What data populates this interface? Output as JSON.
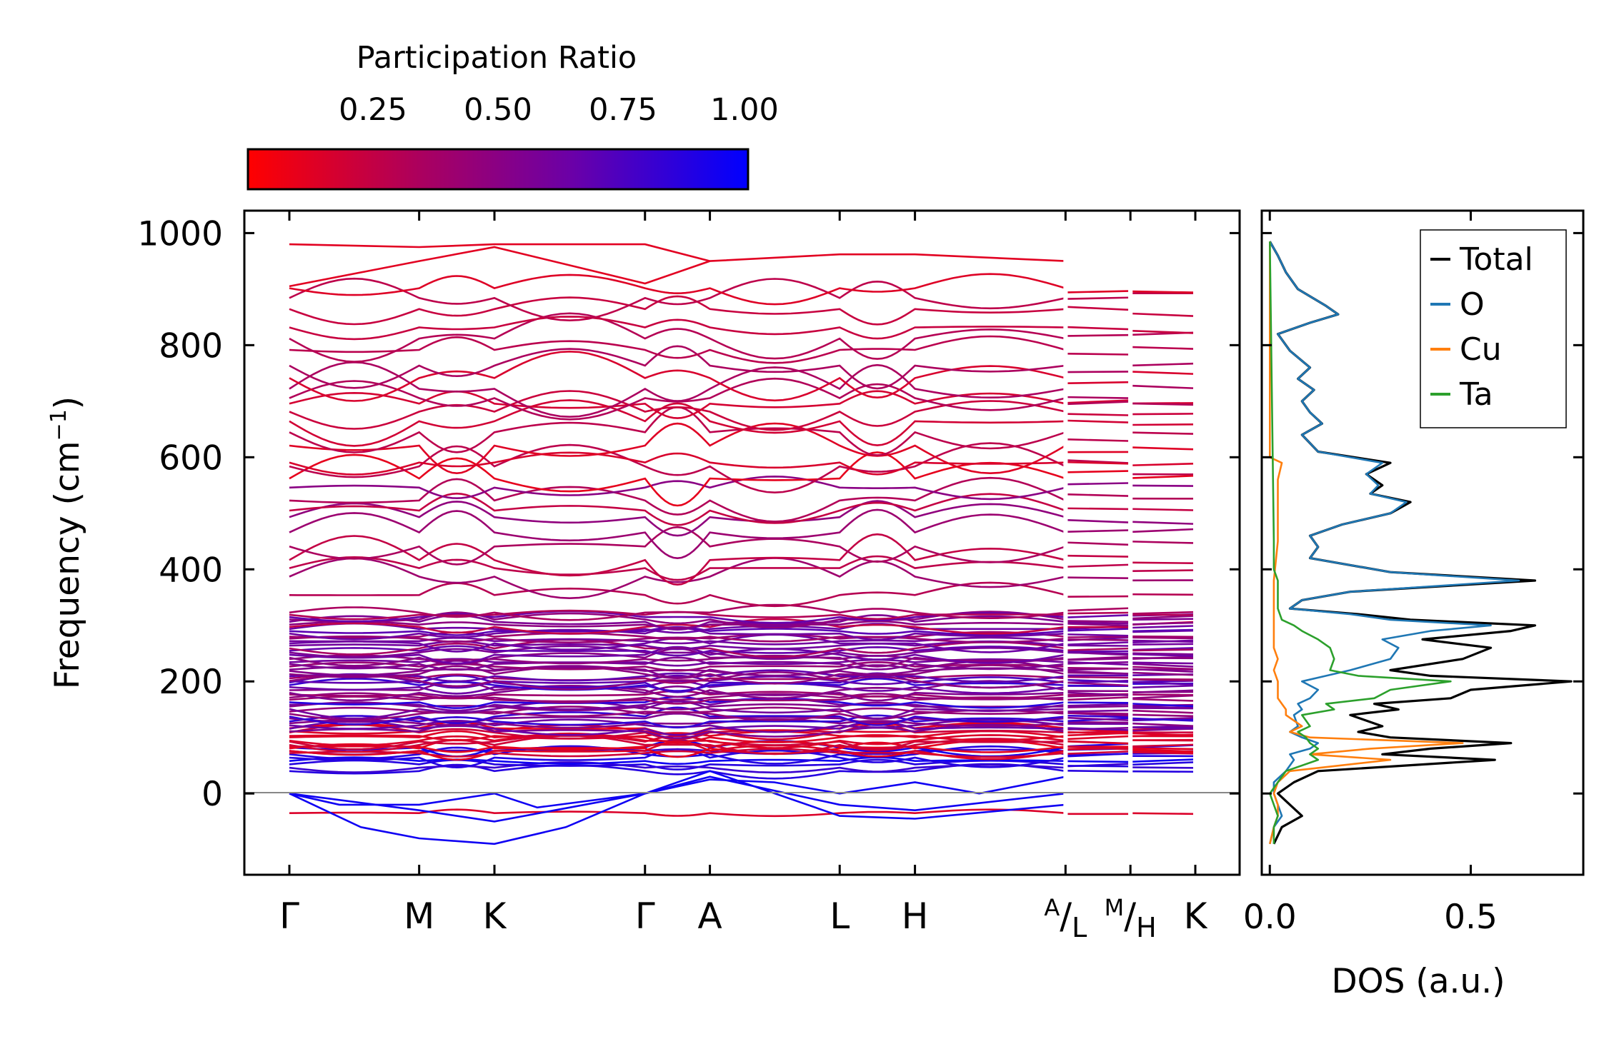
{
  "colorbar": {
    "title": "Participation Ratio",
    "ticks": [
      0.25,
      0.5,
      0.75,
      1.0
    ],
    "tick_labels": [
      "0.25",
      "0.50",
      "0.75",
      "1.00"
    ],
    "range": [
      0.0,
      1.0
    ],
    "color_low": "#ff0000",
    "color_high": "#0000ff"
  },
  "chart_data": [
    {
      "type": "line",
      "title": "",
      "xlabel": "",
      "ylabel_prefix": "Frequency (cm",
      "ylabel_sup": "−1",
      "ylabel_suffix": ")",
      "ylim": [
        -145,
        1040
      ],
      "yticks": [
        0,
        200,
        400,
        600,
        800,
        1000
      ],
      "ytick_labels": [
        "0",
        "200",
        "400",
        "600",
        "800",
        "1000"
      ],
      "kpath": {
        "segments": [
          {
            "from": "Γ",
            "to": "M",
            "length": 1.0
          },
          {
            "from": "M",
            "to": "K",
            "length": 0.58
          },
          {
            "from": "K",
            "to": "Γ",
            "length": 1.16
          },
          {
            "from": "Γ",
            "to": "A",
            "length": 0.5
          },
          {
            "from": "A",
            "to": "L",
            "length": 1.0
          },
          {
            "from": "L",
            "to": "H",
            "length": 0.58
          },
          {
            "from": "H",
            "to": "A",
            "length": 1.16
          },
          {
            "from": "L",
            "to": "M",
            "length": 0.5
          },
          {
            "from": "H",
            "to": "K",
            "length": 0.5
          }
        ],
        "tick_labels": [
          {
            "main": "Γ"
          },
          {
            "main": "M"
          },
          {
            "main": "K"
          },
          {
            "main": "Γ"
          },
          {
            "main": "A"
          },
          {
            "main": "L"
          },
          {
            "main": "H"
          },
          {
            "sup": "A",
            "main": "/",
            "sub": "L"
          },
          {
            "sup": "M",
            "main": "/",
            "sub": "H"
          },
          {
            "main": "K"
          }
        ]
      },
      "bands_description": "About 110 phonon branches spanning -90 to 980 cm-1, colored by participation ratio (red = localized ~0.1, blue = delocalized ~1.0). Imaginary (negative) modes near Γ, K, Γ and L-H regions; dense manifold 30-330 cm-1; separated groups around 340-600, 600-900 and a top branch near 950-980 cm-1."
    },
    {
      "type": "line",
      "orientation": "horizontal",
      "xlabel": "DOS (a.u.)",
      "xlim": [
        -0.02,
        0.78
      ],
      "xticks": [
        0.0,
        0.5
      ],
      "xtick_labels": [
        "0.0",
        "0.5"
      ],
      "ylim": [
        -145,
        1040
      ],
      "legend_position": "top-right",
      "series": [
        {
          "name": "Total",
          "color": "#000000",
          "points": [
            [
              -90,
              0.01
            ],
            [
              -60,
              0.03
            ],
            [
              -40,
              0.08
            ],
            [
              -20,
              0.05
            ],
            [
              0,
              0.02
            ],
            [
              20,
              0.06
            ],
            [
              40,
              0.12
            ],
            [
              60,
              0.56
            ],
            [
              70,
              0.28
            ],
            [
              80,
              0.4
            ],
            [
              90,
              0.6
            ],
            [
              100,
              0.3
            ],
            [
              110,
              0.22
            ],
            [
              120,
              0.28
            ],
            [
              140,
              0.2
            ],
            [
              150,
              0.32
            ],
            [
              160,
              0.26
            ],
            [
              170,
              0.45
            ],
            [
              185,
              0.5
            ],
            [
              200,
              0.75
            ],
            [
              210,
              0.4
            ],
            [
              220,
              0.3
            ],
            [
              240,
              0.48
            ],
            [
              260,
              0.55
            ],
            [
              275,
              0.38
            ],
            [
              290,
              0.6
            ],
            [
              300,
              0.66
            ],
            [
              310,
              0.35
            ],
            [
              320,
              0.22
            ],
            [
              330,
              0.05
            ],
            [
              345,
              0.08
            ],
            [
              360,
              0.2
            ],
            [
              380,
              0.66
            ],
            [
              395,
              0.3
            ],
            [
              420,
              0.1
            ],
            [
              440,
              0.12
            ],
            [
              460,
              0.1
            ],
            [
              480,
              0.18
            ],
            [
              500,
              0.3
            ],
            [
              520,
              0.35
            ],
            [
              535,
              0.25
            ],
            [
              550,
              0.28
            ],
            [
              570,
              0.24
            ],
            [
              590,
              0.3
            ],
            [
              610,
              0.12
            ],
            [
              640,
              0.08
            ],
            [
              660,
              0.13
            ],
            [
              680,
              0.1
            ],
            [
              700,
              0.08
            ],
            [
              720,
              0.11
            ],
            [
              740,
              0.07
            ],
            [
              760,
              0.1
            ],
            [
              790,
              0.05
            ],
            [
              820,
              0.02
            ],
            [
              840,
              0.1
            ],
            [
              855,
              0.17
            ],
            [
              870,
              0.14
            ],
            [
              900,
              0.07
            ],
            [
              930,
              0.04
            ],
            [
              960,
              0.02
            ],
            [
              985,
              0.0
            ]
          ]
        },
        {
          "name": "O",
          "color": "#1f77b4",
          "points": [
            [
              -90,
              0.0
            ],
            [
              -60,
              0.01
            ],
            [
              -40,
              0.03
            ],
            [
              -20,
              0.02
            ],
            [
              0,
              0.01
            ],
            [
              20,
              0.01
            ],
            [
              40,
              0.04
            ],
            [
              60,
              0.06
            ],
            [
              70,
              0.05
            ],
            [
              80,
              0.1
            ],
            [
              90,
              0.12
            ],
            [
              100,
              0.08
            ],
            [
              110,
              0.05
            ],
            [
              120,
              0.07
            ],
            [
              140,
              0.06
            ],
            [
              150,
              0.08
            ],
            [
              160,
              0.07
            ],
            [
              170,
              0.1
            ],
            [
              185,
              0.12
            ],
            [
              200,
              0.08
            ],
            [
              210,
              0.14
            ],
            [
              220,
              0.2
            ],
            [
              240,
              0.3
            ],
            [
              260,
              0.32
            ],
            [
              275,
              0.28
            ],
            [
              290,
              0.4
            ],
            [
              300,
              0.55
            ],
            [
              310,
              0.3
            ],
            [
              320,
              0.2
            ],
            [
              330,
              0.05
            ],
            [
              345,
              0.08
            ],
            [
              360,
              0.2
            ],
            [
              380,
              0.62
            ],
            [
              395,
              0.3
            ],
            [
              420,
              0.1
            ],
            [
              440,
              0.12
            ],
            [
              460,
              0.1
            ],
            [
              480,
              0.18
            ],
            [
              500,
              0.3
            ],
            [
              520,
              0.34
            ],
            [
              535,
              0.25
            ],
            [
              550,
              0.27
            ],
            [
              570,
              0.24
            ],
            [
              590,
              0.28
            ],
            [
              610,
              0.12
            ],
            [
              640,
              0.08
            ],
            [
              660,
              0.13
            ],
            [
              680,
              0.1
            ],
            [
              700,
              0.08
            ],
            [
              720,
              0.11
            ],
            [
              740,
              0.07
            ],
            [
              760,
              0.1
            ],
            [
              790,
              0.05
            ],
            [
              820,
              0.02
            ],
            [
              840,
              0.1
            ],
            [
              855,
              0.17
            ],
            [
              870,
              0.14
            ],
            [
              900,
              0.07
            ],
            [
              930,
              0.04
            ],
            [
              960,
              0.02
            ],
            [
              985,
              0.0
            ]
          ]
        },
        {
          "name": "Cu",
          "color": "#ff7f0e",
          "points": [
            [
              -90,
              0.0
            ],
            [
              -60,
              0.01
            ],
            [
              -40,
              0.02
            ],
            [
              -20,
              0.02
            ],
            [
              0,
              0.01
            ],
            [
              20,
              0.02
            ],
            [
              40,
              0.05
            ],
            [
              60,
              0.3
            ],
            [
              70,
              0.1
            ],
            [
              80,
              0.25
            ],
            [
              90,
              0.48
            ],
            [
              100,
              0.1
            ],
            [
              110,
              0.05
            ],
            [
              120,
              0.08
            ],
            [
              140,
              0.04
            ],
            [
              150,
              0.04
            ],
            [
              160,
              0.03
            ],
            [
              170,
              0.02
            ],
            [
              185,
              0.02
            ],
            [
              200,
              0.02
            ],
            [
              220,
              0.01
            ],
            [
              240,
              0.02
            ],
            [
              260,
              0.01
            ],
            [
              290,
              0.01
            ],
            [
              320,
              0.01
            ],
            [
              380,
              0.01
            ],
            [
              450,
              0.02
            ],
            [
              500,
              0.02
            ],
            [
              560,
              0.02
            ],
            [
              590,
              0.03
            ],
            [
              600,
              0.0
            ],
            [
              985,
              0.0
            ]
          ]
        },
        {
          "name": "Ta",
          "color": "#2ca02c",
          "points": [
            [
              -90,
              0.01
            ],
            [
              -60,
              0.01
            ],
            [
              -40,
              0.02
            ],
            [
              -20,
              0.01
            ],
            [
              0,
              0.0
            ],
            [
              20,
              0.02
            ],
            [
              40,
              0.04
            ],
            [
              60,
              0.12
            ],
            [
              70,
              0.1
            ],
            [
              80,
              0.12
            ],
            [
              90,
              0.1
            ],
            [
              100,
              0.09
            ],
            [
              110,
              0.07
            ],
            [
              120,
              0.1
            ],
            [
              140,
              0.08
            ],
            [
              150,
              0.16
            ],
            [
              160,
              0.14
            ],
            [
              170,
              0.26
            ],
            [
              185,
              0.3
            ],
            [
              200,
              0.45
            ],
            [
              210,
              0.22
            ],
            [
              220,
              0.15
            ],
            [
              240,
              0.16
            ],
            [
              260,
              0.15
            ],
            [
              275,
              0.12
            ],
            [
              290,
              0.08
            ],
            [
              300,
              0.06
            ],
            [
              310,
              0.03
            ],
            [
              330,
              0.02
            ],
            [
              380,
              0.02
            ],
            [
              400,
              0.01
            ],
            [
              450,
              0.01
            ],
            [
              985,
              0.0
            ]
          ]
        }
      ]
    }
  ]
}
